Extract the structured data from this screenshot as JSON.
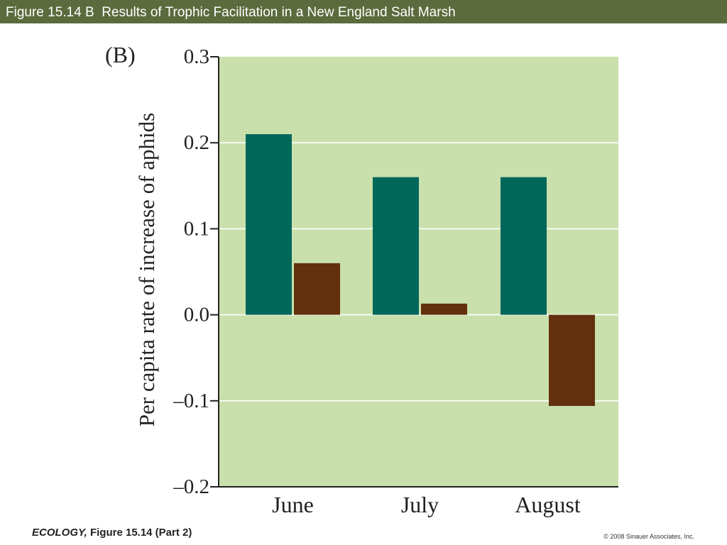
{
  "slide": {
    "title": "Figure 15.14 B  Results of Trophic Facilitation in a New England Salt Marsh",
    "footer_book": "ECOLOGY,",
    "footer_figure": " Figure 15.14 (Part 2)",
    "copyright": "© 2008 Sinauer Associates, Inc."
  },
  "colors": {
    "title_bar": "#5c6b3d",
    "plot_background": "#c9e0ac",
    "series_1": "#00675a",
    "series_2": "#62300c"
  },
  "chart_data": {
    "type": "bar",
    "panel_label": "(B)",
    "categories": [
      "June",
      "July",
      "August"
    ],
    "series": [
      {
        "values": [
          0.21,
          0.16,
          0.16
        ]
      },
      {
        "values": [
          0.06,
          0.013,
          -0.106
        ]
      }
    ],
    "ylabel": "Per capita rate of increase of aphids",
    "xlabel": "",
    "ylim": [
      -0.2,
      0.3
    ],
    "yticks": [
      0.3,
      0.2,
      0.1,
      0.0,
      -0.1,
      -0.2
    ],
    "ytick_labels": [
      "0.3",
      "0.2",
      "0.1",
      "0.0",
      "–0.1",
      "–0.2"
    ],
    "grid": true,
    "legend": "none"
  }
}
